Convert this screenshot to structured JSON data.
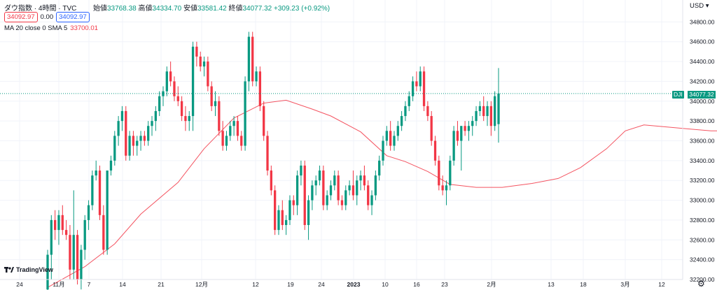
{
  "header": {
    "symbol": "ダウ指数 · 4時間 · TVC",
    "ohlc_labels": {
      "open": "始値",
      "high": "高値",
      "low": "安値",
      "close": "終値"
    },
    "ohlc_values": {
      "open": "33768.38",
      "high": "34334.70",
      "low": "33581.42",
      "close": "34077.32",
      "change": "+309.23 (+0.92%)"
    },
    "sell_price": "34092.97",
    "spread": "0.00",
    "buy_price": "34092.97",
    "ma_label": "MA 20 close 0 SMA 5",
    "ma_value": "33700.01",
    "currency": "USD",
    "logo": "TradingView",
    "symbol_tag": "DJI",
    "last_price": "34077.32"
  },
  "colors": {
    "up": "#089981",
    "down": "#f23645",
    "ma": "#f23645",
    "grid": "#f0f3fa"
  },
  "chart_data": {
    "type": "candlestick",
    "y_ticks": [
      "34800.00",
      "34600.00",
      "34400.00",
      "34200.00",
      "34000.00",
      "33800.00",
      "33600.00",
      "33400.00",
      "33200.00",
      "33000.00",
      "32800.00",
      "32600.00",
      "32400.00",
      "32200.00"
    ],
    "y_range": [
      32200,
      34880
    ],
    "x_ticks": [
      "24",
      "11月",
      "7",
      "14",
      "21",
      "12月",
      "12",
      "19",
      "24",
      "2023",
      "10",
      "16",
      "23",
      "2月",
      "13",
      "18",
      "3月",
      "12"
    ],
    "x_tick_bold": "2023",
    "last_price": 34077.32,
    "candles": [
      {
        "o": 32100,
        "h": 32500,
        "l": 32000,
        "c": 32450
      },
      {
        "o": 32450,
        "h": 32850,
        "l": 32200,
        "c": 32800
      },
      {
        "o": 32800,
        "h": 32900,
        "l": 32600,
        "c": 32700
      },
      {
        "o": 32700,
        "h": 32900,
        "l": 32550,
        "c": 32850
      },
      {
        "o": 32850,
        "h": 32950,
        "l": 32650,
        "c": 32700
      },
      {
        "o": 32700,
        "h": 32800,
        "l": 32600,
        "c": 32650
      },
      {
        "o": 32650,
        "h": 32750,
        "l": 32200,
        "c": 32300
      },
      {
        "o": 32300,
        "h": 33100,
        "l": 32200,
        "c": 32650
      },
      {
        "o": 32650,
        "h": 32700,
        "l": 32150,
        "c": 32200
      },
      {
        "o": 32200,
        "h": 32550,
        "l": 32100,
        "c": 32500
      },
      {
        "o": 32500,
        "h": 32850,
        "l": 32400,
        "c": 32800
      },
      {
        "o": 32800,
        "h": 33000,
        "l": 32700,
        "c": 32950
      },
      {
        "o": 32950,
        "h": 33300,
        "l": 32900,
        "c": 33250
      },
      {
        "o": 33250,
        "h": 33400,
        "l": 33200,
        "c": 33300
      },
      {
        "o": 33300,
        "h": 33350,
        "l": 32800,
        "c": 32850
      },
      {
        "o": 32850,
        "h": 32950,
        "l": 32450,
        "c": 32500
      },
      {
        "o": 32500,
        "h": 33300,
        "l": 32450,
        "c": 33300
      },
      {
        "o": 33300,
        "h": 33450,
        "l": 33250,
        "c": 33400
      },
      {
        "o": 33400,
        "h": 33700,
        "l": 33350,
        "c": 33650
      },
      {
        "o": 33650,
        "h": 33850,
        "l": 33550,
        "c": 33800
      },
      {
        "o": 33800,
        "h": 33950,
        "l": 33700,
        "c": 33900
      },
      {
        "o": 33900,
        "h": 33950,
        "l": 33400,
        "c": 33450
      },
      {
        "o": 33450,
        "h": 33700,
        "l": 33400,
        "c": 33650
      },
      {
        "o": 33650,
        "h": 33700,
        "l": 33450,
        "c": 33550
      },
      {
        "o": 33550,
        "h": 33650,
        "l": 33450,
        "c": 33600
      },
      {
        "o": 33600,
        "h": 33700,
        "l": 33500,
        "c": 33650
      },
      {
        "o": 33650,
        "h": 33700,
        "l": 33550,
        "c": 33600
      },
      {
        "o": 33600,
        "h": 33800,
        "l": 33550,
        "c": 33750
      },
      {
        "o": 33750,
        "h": 33850,
        "l": 33650,
        "c": 33800
      },
      {
        "o": 33800,
        "h": 33950,
        "l": 33700,
        "c": 33900
      },
      {
        "o": 33900,
        "h": 34100,
        "l": 33850,
        "c": 34050
      },
      {
        "o": 34050,
        "h": 34150,
        "l": 33950,
        "c": 34100
      },
      {
        "o": 34100,
        "h": 34350,
        "l": 34050,
        "c": 34300
      },
      {
        "o": 34300,
        "h": 34400,
        "l": 34150,
        "c": 34200
      },
      {
        "o": 34200,
        "h": 34250,
        "l": 34000,
        "c": 34050
      },
      {
        "o": 34050,
        "h": 34150,
        "l": 33950,
        "c": 34000
      },
      {
        "o": 34000,
        "h": 34050,
        "l": 33800,
        "c": 33850
      },
      {
        "o": 33850,
        "h": 33950,
        "l": 33700,
        "c": 33800
      },
      {
        "o": 33800,
        "h": 33900,
        "l": 33700,
        "c": 33850
      },
      {
        "o": 33850,
        "h": 34600,
        "l": 33700,
        "c": 34550
      },
      {
        "o": 34550,
        "h": 34600,
        "l": 34350,
        "c": 34450
      },
      {
        "o": 34450,
        "h": 34500,
        "l": 34300,
        "c": 34350
      },
      {
        "o": 34350,
        "h": 34450,
        "l": 34250,
        "c": 34400
      },
      {
        "o": 34400,
        "h": 34450,
        "l": 34100,
        "c": 34150
      },
      {
        "o": 34150,
        "h": 34200,
        "l": 33900,
        "c": 33950
      },
      {
        "o": 33950,
        "h": 34100,
        "l": 33850,
        "c": 34000
      },
      {
        "o": 34000,
        "h": 34050,
        "l": 33650,
        "c": 33700
      },
      {
        "o": 33700,
        "h": 33800,
        "l": 33500,
        "c": 33550
      },
      {
        "o": 33550,
        "h": 33700,
        "l": 33500,
        "c": 33650
      },
      {
        "o": 33650,
        "h": 33800,
        "l": 33600,
        "c": 33750
      },
      {
        "o": 33750,
        "h": 33850,
        "l": 33650,
        "c": 33800
      },
      {
        "o": 33800,
        "h": 33850,
        "l": 33600,
        "c": 33650
      },
      {
        "o": 33650,
        "h": 33700,
        "l": 33500,
        "c": 33550
      },
      {
        "o": 33550,
        "h": 34250,
        "l": 33500,
        "c": 34200
      },
      {
        "o": 34200,
        "h": 34700,
        "l": 34100,
        "c": 34650
      },
      {
        "o": 34650,
        "h": 34700,
        "l": 34150,
        "c": 34200
      },
      {
        "o": 34200,
        "h": 34350,
        "l": 34150,
        "c": 34300
      },
      {
        "o": 34300,
        "h": 34350,
        "l": 33900,
        "c": 33950
      },
      {
        "o": 33950,
        "h": 34000,
        "l": 33600,
        "c": 33650
      },
      {
        "o": 33650,
        "h": 33700,
        "l": 33250,
        "c": 33300
      },
      {
        "o": 33300,
        "h": 33350,
        "l": 33050,
        "c": 33100
      },
      {
        "o": 33100,
        "h": 33150,
        "l": 32650,
        "c": 32700
      },
      {
        "o": 32700,
        "h": 32950,
        "l": 32650,
        "c": 32900
      },
      {
        "o": 32900,
        "h": 33000,
        "l": 32700,
        "c": 32750
      },
      {
        "o": 32750,
        "h": 32850,
        "l": 32650,
        "c": 32800
      },
      {
        "o": 32800,
        "h": 33050,
        "l": 32750,
        "c": 33000
      },
      {
        "o": 33000,
        "h": 33050,
        "l": 32850,
        "c": 32950
      },
      {
        "o": 32950,
        "h": 33300,
        "l": 32850,
        "c": 33250
      },
      {
        "o": 33250,
        "h": 33400,
        "l": 33150,
        "c": 33350
      },
      {
        "o": 33350,
        "h": 33400,
        "l": 32700,
        "c": 32750
      },
      {
        "o": 32750,
        "h": 33050,
        "l": 32600,
        "c": 33000
      },
      {
        "o": 33000,
        "h": 33200,
        "l": 32900,
        "c": 33150
      },
      {
        "o": 33150,
        "h": 33250,
        "l": 33050,
        "c": 33200
      },
      {
        "o": 33200,
        "h": 33350,
        "l": 33150,
        "c": 33300
      },
      {
        "o": 33300,
        "h": 33350,
        "l": 32900,
        "c": 32950
      },
      {
        "o": 32950,
        "h": 33100,
        "l": 32900,
        "c": 33050
      },
      {
        "o": 33050,
        "h": 33200,
        "l": 33000,
        "c": 33150
      },
      {
        "o": 33150,
        "h": 33300,
        "l": 33100,
        "c": 33250
      },
      {
        "o": 33250,
        "h": 33300,
        "l": 32950,
        "c": 33000
      },
      {
        "o": 33000,
        "h": 33050,
        "l": 32900,
        "c": 32950
      },
      {
        "o": 32950,
        "h": 33150,
        "l": 32900,
        "c": 33100
      },
      {
        "o": 33100,
        "h": 33200,
        "l": 33050,
        "c": 33150
      },
      {
        "o": 33150,
        "h": 33300,
        "l": 33000,
        "c": 33050
      },
      {
        "o": 33050,
        "h": 33250,
        "l": 32950,
        "c": 33200
      },
      {
        "o": 33200,
        "h": 33300,
        "l": 33100,
        "c": 33250
      },
      {
        "o": 33250,
        "h": 33350,
        "l": 33100,
        "c": 33150
      },
      {
        "o": 33150,
        "h": 33200,
        "l": 32900,
        "c": 32950
      },
      {
        "o": 32950,
        "h": 33100,
        "l": 32850,
        "c": 33050
      },
      {
        "o": 33050,
        "h": 33300,
        "l": 33000,
        "c": 33250
      },
      {
        "o": 33250,
        "h": 33450,
        "l": 33200,
        "c": 33400
      },
      {
        "o": 33400,
        "h": 33650,
        "l": 33350,
        "c": 33600
      },
      {
        "o": 33600,
        "h": 33750,
        "l": 33550,
        "c": 33700
      },
      {
        "o": 33700,
        "h": 33800,
        "l": 33500,
        "c": 33550
      },
      {
        "o": 33550,
        "h": 33700,
        "l": 33500,
        "c": 33650
      },
      {
        "o": 33650,
        "h": 33800,
        "l": 33600,
        "c": 33750
      },
      {
        "o": 33750,
        "h": 33900,
        "l": 33700,
        "c": 33850
      },
      {
        "o": 33850,
        "h": 34000,
        "l": 33800,
        "c": 33950
      },
      {
        "o": 33950,
        "h": 34100,
        "l": 33900,
        "c": 34050
      },
      {
        "o": 34050,
        "h": 34250,
        "l": 34000,
        "c": 34200
      },
      {
        "o": 34200,
        "h": 34300,
        "l": 34100,
        "c": 34150
      },
      {
        "o": 34150,
        "h": 34350,
        "l": 34100,
        "c": 34300
      },
      {
        "o": 34300,
        "h": 34350,
        "l": 33900,
        "c": 33950
      },
      {
        "o": 33950,
        "h": 34000,
        "l": 33800,
        "c": 33850
      },
      {
        "o": 33850,
        "h": 33900,
        "l": 33550,
        "c": 33600
      },
      {
        "o": 33600,
        "h": 33650,
        "l": 33350,
        "c": 33400
      },
      {
        "o": 33400,
        "h": 33450,
        "l": 33100,
        "c": 33150
      },
      {
        "o": 33150,
        "h": 33250,
        "l": 33050,
        "c": 33100
      },
      {
        "o": 33100,
        "h": 33200,
        "l": 32950,
        "c": 33150
      },
      {
        "o": 33150,
        "h": 33450,
        "l": 33100,
        "c": 33400
      },
      {
        "o": 33400,
        "h": 33750,
        "l": 33350,
        "c": 33700
      },
      {
        "o": 33700,
        "h": 33800,
        "l": 33550,
        "c": 33600
      },
      {
        "o": 33600,
        "h": 33750,
        "l": 33300,
        "c": 33750
      },
      {
        "o": 33750,
        "h": 33800,
        "l": 33650,
        "c": 33700
      },
      {
        "o": 33700,
        "h": 33800,
        "l": 33600,
        "c": 33750
      },
      {
        "o": 33750,
        "h": 33850,
        "l": 33650,
        "c": 33800
      },
      {
        "o": 33800,
        "h": 33950,
        "l": 33750,
        "c": 33900
      },
      {
        "o": 33900,
        "h": 34000,
        "l": 33850,
        "c": 33950
      },
      {
        "o": 33950,
        "h": 34050,
        "l": 33800,
        "c": 33850
      },
      {
        "o": 33850,
        "h": 34000,
        "l": 33750,
        "c": 33950
      },
      {
        "o": 33950,
        "h": 34000,
        "l": 33650,
        "c": 33750
      },
      {
        "o": 33750,
        "h": 34100,
        "l": 33700,
        "c": 34050
      },
      {
        "o": 33768.38,
        "h": 34334.7,
        "l": 33581.42,
        "c": 34077.32
      }
    ],
    "ma": [
      [
        0,
        32120
      ],
      [
        10,
        32330
      ],
      [
        18,
        32560
      ],
      [
        25,
        32860
      ],
      [
        35,
        33180
      ],
      [
        42,
        33520
      ],
      [
        50,
        33830
      ],
      [
        58,
        33980
      ],
      [
        64,
        34010
      ],
      [
        71,
        33920
      ],
      [
        76,
        33850
      ],
      [
        84,
        33690
      ],
      [
        91,
        33450
      ],
      [
        96,
        33390
      ],
      [
        102,
        33290
      ],
      [
        108,
        33160
      ],
      [
        115,
        33130
      ],
      [
        122,
        33130
      ],
      [
        130,
        33170
      ],
      [
        137,
        33220
      ],
      [
        143,
        33330
      ],
      [
        150,
        33520
      ],
      [
        155,
        33700
      ],
      [
        160,
        33760
      ],
      [
        166,
        33740
      ],
      [
        172,
        33720
      ],
      [
        178,
        33700
      ],
      [
        183,
        33700
      ]
    ]
  }
}
